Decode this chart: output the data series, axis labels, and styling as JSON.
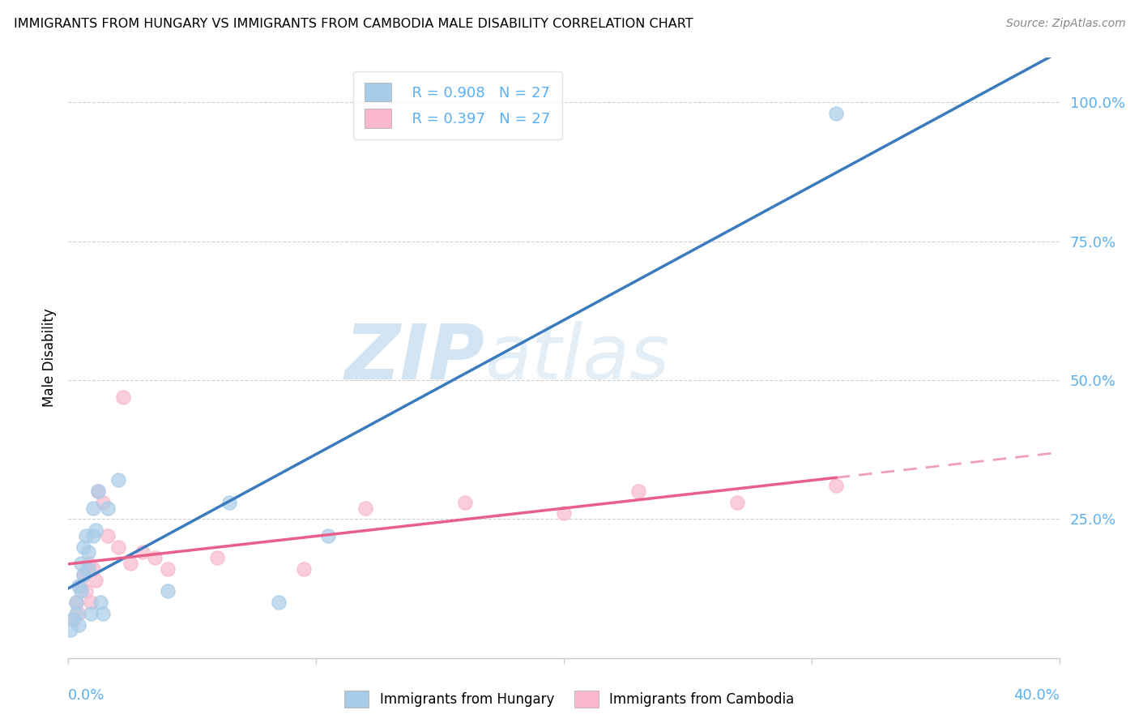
{
  "title": "IMMIGRANTS FROM HUNGARY VS IMMIGRANTS FROM CAMBODIA MALE DISABILITY CORRELATION CHART",
  "source": "Source: ZipAtlas.com",
  "ylabel": "Male Disability",
  "xlim": [
    0.0,
    0.4
  ],
  "ylim": [
    0.0,
    1.08
  ],
  "hungary_color": "#a8cce8",
  "cambodia_color": "#f9b8cc",
  "hungary_line_color": "#3a7bbf",
  "cambodia_line_color": "#e8608a",
  "hungary_line_dash_color": "#b0c8e8",
  "R_hungary": 0.908,
  "N_hungary": 27,
  "R_cambodia": 0.397,
  "N_cambodia": 27,
  "hungary_x": [
    0.001,
    0.002,
    0.003,
    0.003,
    0.004,
    0.004,
    0.005,
    0.005,
    0.006,
    0.006,
    0.007,
    0.008,
    0.008,
    0.009,
    0.01,
    0.01,
    0.011,
    0.012,
    0.013,
    0.014,
    0.016,
    0.02,
    0.04,
    0.065,
    0.085,
    0.105,
    0.31
  ],
  "hungary_y": [
    0.05,
    0.07,
    0.08,
    0.1,
    0.06,
    0.13,
    0.12,
    0.17,
    0.15,
    0.2,
    0.22,
    0.16,
    0.19,
    0.08,
    0.22,
    0.27,
    0.23,
    0.3,
    0.1,
    0.08,
    0.27,
    0.32,
    0.12,
    0.28,
    0.1,
    0.22,
    0.98
  ],
  "cambodia_x": [
    0.002,
    0.003,
    0.004,
    0.005,
    0.006,
    0.007,
    0.008,
    0.009,
    0.01,
    0.011,
    0.012,
    0.014,
    0.016,
    0.02,
    0.022,
    0.025,
    0.03,
    0.035,
    0.04,
    0.06,
    0.095,
    0.12,
    0.16,
    0.2,
    0.23,
    0.27,
    0.31
  ],
  "cambodia_y": [
    0.07,
    0.1,
    0.08,
    0.13,
    0.15,
    0.12,
    0.17,
    0.1,
    0.16,
    0.14,
    0.3,
    0.28,
    0.22,
    0.2,
    0.47,
    0.17,
    0.19,
    0.18,
    0.16,
    0.18,
    0.16,
    0.27,
    0.28,
    0.26,
    0.3,
    0.28,
    0.31
  ],
  "watermark_zip": "ZIP",
  "watermark_atlas": "atlas",
  "background_color": "#ffffff",
  "grid_color": "#cccccc",
  "ytick_labels": [
    "25.0%",
    "50.0%",
    "75.0%",
    "100.0%"
  ],
  "ytick_positions": [
    0.25,
    0.5,
    0.75,
    1.0
  ],
  "ytick_color": "#5bb0f0",
  "xtick_color": "#5bb0f0"
}
